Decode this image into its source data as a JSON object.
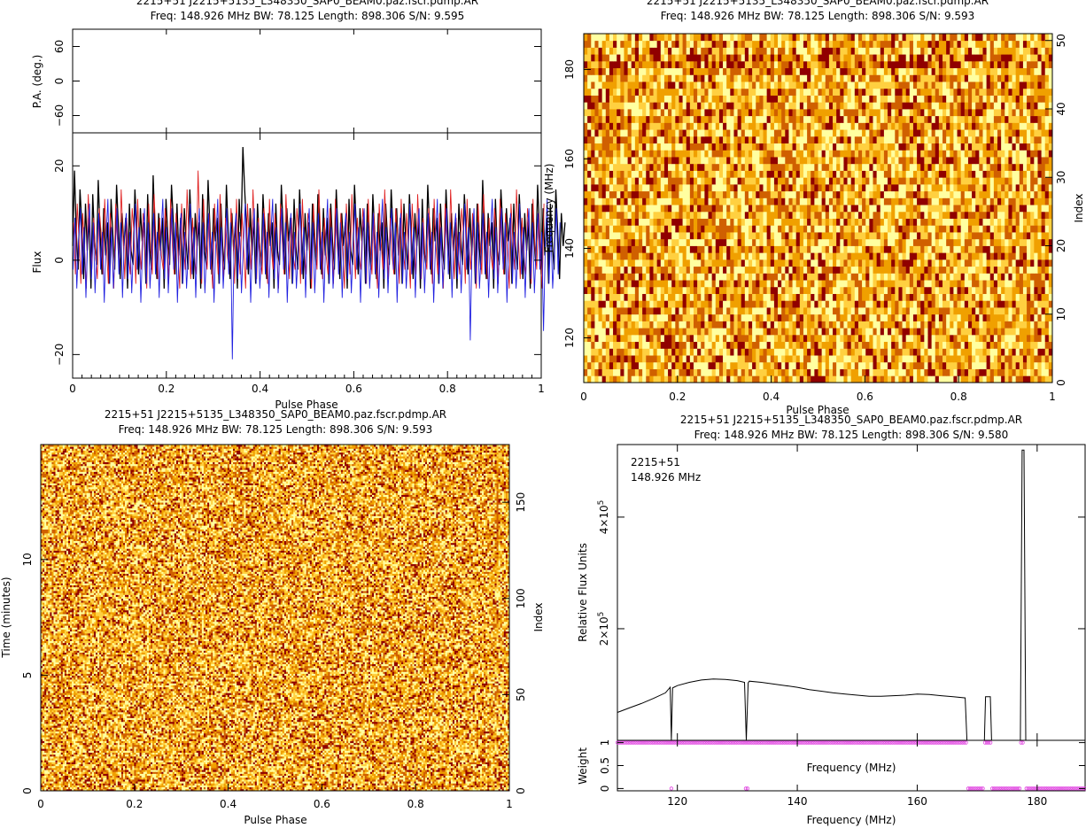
{
  "chart_data": [
    {
      "id": "profile",
      "type": "line",
      "title": "2215+51 J2215+5135_L348350_SAP0_BEAM0.paz.fscr.pdmp.AR",
      "subtitle": "Freq: 148.926 MHz BW: 78.125 Length: 898.306 S/N: 9.595",
      "pa_panel": {
        "ylabel": "P.A. (deg.)",
        "ylim": [
          -90,
          90
        ],
        "yticks": [
          "60",
          "0",
          "−60"
        ],
        "ytick_values": [
          60,
          0,
          -60
        ]
      },
      "xlabel": "Pulse Phase",
      "ylabel": "Flux",
      "xlim": [
        0,
        1
      ],
      "ylim": [
        -25,
        27
      ],
      "xticks": [
        "0",
        "0.2",
        "0.4",
        "0.6",
        "0.8",
        "1"
      ],
      "yticks": [
        "20",
        "0",
        "−20"
      ],
      "ytick_values": [
        20,
        0,
        -20
      ],
      "series": [
        {
          "color": "#000000",
          "x_start": 0,
          "x_step": 0.00390625,
          "values": [
            3,
            19,
            6,
            -2,
            15,
            8,
            -4,
            12,
            2,
            9,
            -6,
            14,
            4,
            -1,
            17,
            6,
            -3,
            11,
            1,
            8,
            -5,
            13,
            5,
            -2,
            16,
            7,
            -4,
            10,
            3,
            9,
            -6,
            12,
            2,
            -1,
            15,
            7,
            -3,
            11,
            4,
            8,
            -5,
            14,
            3,
            -2,
            18,
            6,
            -4,
            10,
            2,
            9,
            -6,
            13,
            5,
            -1,
            16,
            8,
            -3,
            12,
            1,
            9,
            -5,
            11,
            4,
            -2,
            15,
            6,
            -4,
            10,
            3,
            8,
            -6,
            14,
            2,
            -1,
            17,
            7,
            -3,
            11,
            4,
            9,
            -5,
            12,
            3,
            -2,
            16,
            6,
            -4,
            10,
            2,
            8,
            -6,
            13,
            5,
            24,
            15,
            7,
            -3,
            11,
            1,
            9,
            -5,
            12,
            4,
            -2,
            14,
            6,
            -4,
            10,
            3,
            8,
            -6,
            12,
            2,
            -1,
            16,
            7,
            -3,
            11,
            4,
            9,
            -5,
            13,
            3,
            -2,
            15,
            6,
            -4,
            10,
            2,
            8,
            -6,
            12,
            5,
            -1,
            14,
            7,
            -3,
            11,
            1,
            9,
            -5,
            12,
            4,
            -2,
            15,
            6,
            -4,
            10,
            3,
            8,
            -6,
            13,
            2,
            -1,
            16,
            7,
            -3,
            11,
            4,
            9,
            -5,
            12,
            3,
            -2,
            14,
            6,
            -4,
            10,
            2,
            8,
            -6,
            12,
            5,
            -1,
            15,
            7,
            -3,
            11,
            1,
            9,
            -5,
            12,
            4,
            -2,
            14,
            6,
            -4,
            10,
            3,
            8,
            -6,
            13,
            2,
            -1,
            16,
            7,
            -3,
            11,
            4,
            9,
            -5,
            12,
            3,
            -2,
            15,
            6,
            -4,
            10,
            2,
            8,
            -6,
            12,
            5,
            -1,
            14,
            7,
            -3,
            11,
            1,
            9,
            -5,
            12,
            4,
            -2,
            17,
            6,
            -4,
            10,
            3,
            8,
            -6,
            13,
            2,
            -1,
            15,
            7,
            -3,
            11,
            4,
            9,
            -5,
            12,
            3,
            -2,
            14,
            6,
            -4,
            10,
            2,
            8,
            -6,
            12,
            5,
            -1,
            16,
            7,
            -3,
            11,
            1,
            9,
            -5,
            12,
            4,
            -2,
            15,
            6,
            -4,
            10,
            3,
            8
          ]
        },
        {
          "color": "#e02020",
          "x_start": 0.002,
          "x_step": 0.00390625,
          "values": [
            8,
            -3,
            12,
            4,
            -5,
            10,
            2,
            -6,
            14,
            5,
            -2,
            9,
            1,
            -4,
            11,
            6,
            -3,
            13,
            3,
            -5,
            10,
            2,
            -6,
            12,
            4,
            -2,
            15,
            5,
            -4,
            9,
            1,
            -3,
            11,
            6,
            -5,
            13,
            3,
            -2,
            10,
            2,
            -6,
            12,
            4,
            -3,
            14,
            5,
            -4,
            9,
            1,
            -2,
            11,
            6,
            -5,
            13,
            3,
            -3,
            10,
            2,
            -6,
            12,
            4,
            -2,
            15,
            5,
            -4,
            9,
            1,
            -3,
            19,
            6,
            -5,
            13,
            3,
            -2,
            10,
            2,
            -6,
            12,
            4,
            -3,
            14,
            5,
            -4,
            9,
            1,
            -2,
            11,
            6,
            -5,
            13,
            3,
            -3,
            10,
            2,
            -6,
            12,
            4,
            -2,
            15,
            5,
            -4,
            9,
            1,
            -3,
            11,
            6,
            -5,
            13,
            3,
            -2,
            10,
            2,
            -6,
            12,
            4,
            -3,
            14,
            5,
            -4,
            9,
            1,
            -2,
            11,
            6,
            -5,
            13,
            3,
            -3,
            10,
            2,
            -6,
            12,
            4,
            -2,
            15,
            5,
            -4,
            9,
            1,
            -3,
            11,
            6,
            -5,
            13,
            3,
            -2,
            10,
            2,
            -6,
            12,
            4,
            -3,
            14,
            5,
            -4,
            9,
            1,
            -2,
            11,
            6,
            -5,
            13,
            3,
            -3,
            10,
            2,
            -6,
            12,
            4,
            -2,
            15,
            5,
            -4,
            9,
            1,
            -3,
            11,
            6,
            -5,
            13,
            3,
            -2,
            10,
            2,
            -6,
            12,
            4,
            -3,
            14,
            5,
            -4,
            9,
            1,
            -2,
            11,
            6,
            -5,
            13,
            3,
            -3,
            10,
            2,
            -6,
            12,
            4,
            -2,
            15,
            5,
            -4,
            9,
            1,
            -3,
            11,
            6,
            -5,
            13,
            3,
            -2,
            10,
            2,
            -6,
            12,
            4,
            -3,
            14,
            5,
            -4,
            9,
            1,
            -2,
            11,
            6,
            -5,
            13,
            3,
            -3,
            10,
            2,
            -6,
            12,
            4,
            -2,
            15,
            5,
            -4,
            9,
            1,
            -3,
            11,
            6,
            -5,
            13,
            3,
            -2,
            10,
            2,
            -6,
            12
          ]
        },
        {
          "color": "#2020e0",
          "x_start": 0.001,
          "x_step": 0.00390625,
          "values": [
            -2,
            9,
            -6,
            4,
            11,
            -3,
            7,
            -8,
            5,
            12,
            -4,
            8,
            -7,
            3,
            10,
            -2,
            6,
            -9,
            4,
            13,
            -5,
            7,
            -6,
            2,
            11,
            -3,
            8,
            -8,
            5,
            10,
            -4,
            6,
            -7,
            3,
            12,
            -2,
            7,
            -9,
            4,
            11,
            -5,
            8,
            -6,
            2,
            10,
            -3,
            6,
            -8,
            5,
            13,
            -4,
            7,
            -7,
            3,
            11,
            -2,
            8,
            -9,
            4,
            10,
            -5,
            6,
            -6,
            2,
            12,
            -3,
            7,
            -8,
            5,
            11,
            -4,
            8,
            -7,
            3,
            10,
            -2,
            6,
            -9,
            4,
            13,
            -5,
            7,
            -6,
            2,
            11,
            -3,
            8,
            -21,
            5,
            10,
            -4,
            6,
            -7,
            3,
            12,
            -2,
            7,
            -9,
            4,
            11,
            -5,
            8,
            -6,
            2,
            10,
            -3,
            6,
            -8,
            5,
            13,
            -4,
            7,
            -7,
            3,
            11,
            -2,
            8,
            -9,
            4,
            10,
            -5,
            6,
            -6,
            2,
            12,
            -3,
            7,
            -8,
            5,
            11,
            -4,
            8,
            -7,
            3,
            10,
            -2,
            6,
            -9,
            4,
            13,
            -5,
            7,
            -6,
            2,
            11,
            -3,
            8,
            -8,
            5,
            10,
            -4,
            6,
            -7,
            3,
            12,
            -2,
            7,
            -9,
            4,
            11,
            -5,
            8,
            -6,
            2,
            10,
            -3,
            6,
            -8,
            5,
            13,
            -4,
            7,
            -7,
            3,
            11,
            -2,
            8,
            -9,
            4,
            10,
            -5,
            6,
            -6,
            2,
            12,
            -3,
            7,
            -8,
            5,
            11,
            -4,
            8,
            -7,
            3,
            10,
            -2,
            6,
            -9,
            4,
            13,
            -5,
            7,
            -6,
            2,
            11,
            -3,
            8,
            -8,
            5,
            10,
            -4,
            6,
            -7,
            3,
            12,
            -2,
            7,
            -17,
            4,
            11,
            -5,
            8,
            -6,
            2,
            10,
            -3,
            6,
            -8,
            5,
            13,
            -4,
            7,
            -7,
            3,
            11,
            -2,
            8,
            -9,
            4,
            10,
            -5,
            6,
            -6,
            2,
            12,
            -3,
            7,
            -8,
            5,
            11,
            -4,
            8,
            -7,
            3,
            10,
            -2,
            6,
            -15,
            4,
            13,
            -5,
            7,
            -6,
            2,
            11,
            -3,
            8
          ]
        }
      ]
    },
    {
      "id": "freq_phase",
      "type": "heatmap",
      "title": "2215+51 J2215+5135_L348350_SAP0_BEAM0.paz.fscr.pdmp.AR",
      "subtitle": "Freq: 148.926 MHz BW: 78.125 Length: 898.306 S/N: 9.593",
      "xlabel": "Pulse Phase",
      "ylabel": "Frequency (MHz)",
      "y2label": "Index",
      "xlim": [
        0,
        1
      ],
      "ylim": [
        110,
        188
      ],
      "y2lim": [
        0,
        51
      ],
      "xticks": [
        "0",
        "0.2",
        "0.4",
        "0.6",
        "0.8",
        "1"
      ],
      "yticks": [
        "120",
        "140",
        "160",
        "180"
      ],
      "ytick_values": [
        120,
        140,
        160,
        180
      ],
      "y2ticks": [
        "0",
        "10",
        "20",
        "30",
        "40",
        "50"
      ],
      "y2tick_values": [
        0,
        10,
        20,
        30,
        40,
        50
      ],
      "grid": {
        "cols": 128,
        "rows": 51,
        "seed": 7
      },
      "colormap": [
        "#ffffa0",
        "#ffd040",
        "#f0a000",
        "#d06000",
        "#900000"
      ]
    },
    {
      "id": "time_phase",
      "type": "heatmap",
      "title": "2215+51 J2215+5135_L348350_SAP0_BEAM0.paz.fscr.pdmp.AR",
      "subtitle": "Freq: 148.926 MHz BW: 78.125 Length: 898.306 S/N: 9.593",
      "xlabel": "Pulse Phase",
      "ylabel": "Time (minutes)",
      "y2label": "Index",
      "xlim": [
        0,
        1
      ],
      "ylim": [
        0,
        14.97
      ],
      "y2lim": [
        0,
        180
      ],
      "xticks": [
        "0",
        "0.2",
        "0.4",
        "0.6",
        "0.8",
        "1"
      ],
      "yticks": [
        "0",
        "5",
        "10"
      ],
      "ytick_values": [
        0,
        5,
        10
      ],
      "y2ticks": [
        "0",
        "50",
        "100",
        "150"
      ],
      "y2tick_values": [
        0,
        50,
        100,
        150
      ],
      "grid": {
        "cols": 256,
        "rows": 180,
        "seed": 13
      },
      "colormap": [
        "#ffffa0",
        "#ffd040",
        "#f0a000",
        "#d06000",
        "#900000"
      ]
    },
    {
      "id": "bandpass",
      "type": "line",
      "title": "2215+51 J2215+5135_L348350_SAP0_BEAM0.paz.fscr.pdmp.AR",
      "subtitle": "Freq: 148.926 MHz BW: 78.125 Length: 898.306 S/N: 9.580",
      "annotations": [
        "2215+51",
        "148.926 MHz"
      ],
      "xlabel": "Frequency (MHz)",
      "ylabel": "Relative Flux Units",
      "xlim": [
        110,
        188
      ],
      "ylim": [
        0,
        530000
      ],
      "xticks": [
        "120",
        "140",
        "160",
        "180"
      ],
      "xtick_values": [
        120,
        140,
        160,
        180
      ],
      "yticks_values": [
        200000,
        400000
      ],
      "yticks_mantissa": [
        "2×10",
        "4×10"
      ],
      "yticks_exp": "5",
      "series": [
        {
          "color": "#000000",
          "x": [
            110,
            112,
            114,
            116,
            118,
            118.8,
            119,
            119.2,
            119.6,
            120,
            122,
            124,
            126,
            128,
            130,
            131.2,
            131.5,
            131.8,
            132,
            134,
            136,
            138,
            140,
            142,
            144,
            146,
            148,
            150,
            152,
            154,
            156,
            158,
            160,
            162,
            164,
            166,
            168,
            168.3,
            168.6,
            171.2,
            171.4,
            172.2,
            172.4,
            177.2,
            177.5,
            177.8,
            178.1
          ],
          "values": [
            50000,
            58000,
            66000,
            75000,
            85000,
            95000,
            0,
            94000,
            96000,
            98000,
            104000,
            108000,
            110000,
            109000,
            107000,
            104000,
            0,
            103000,
            106000,
            104000,
            101000,
            98000,
            95000,
            91000,
            88000,
            85000,
            83000,
            81000,
            79000,
            79000,
            80000,
            81000,
            83000,
            82000,
            80000,
            78000,
            76000,
            0,
            0,
            0,
            78000,
            78000,
            0,
            0,
            520000,
            520000,
            0
          ]
        }
      ],
      "weight_panel": {
        "ylabel": "Weight",
        "ylim": [
          -0.05,
          1.05
        ],
        "yticks": [
          "0",
          "0.5",
          "1"
        ],
        "ytick_values": [
          0,
          0.5,
          1
        ],
        "xlabel_inner": "Frequency (MHz)",
        "marker_color": "#e040e0",
        "ones": [
          [
            110,
            168.2
          ],
          [
            171.3,
            172.3
          ],
          [
            177.3,
            177.9
          ]
        ],
        "zeros": [
          [
            119.0,
            119.1
          ],
          [
            131.4,
            131.9
          ],
          [
            168.5,
            171.2
          ],
          [
            172.5,
            177.1
          ],
          [
            178.2,
            188
          ]
        ]
      }
    }
  ]
}
